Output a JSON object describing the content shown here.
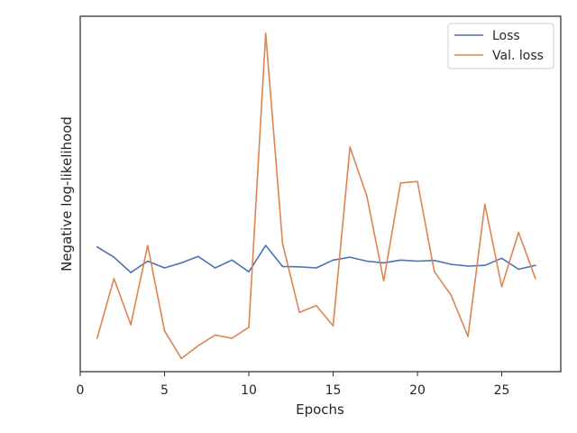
{
  "chart_data": {
    "type": "line",
    "xlabel": "Epochs",
    "ylabel": "Negative log-likelihood",
    "xlim": [
      0,
      28.5
    ],
    "ylim": [
      0,
      1
    ],
    "x_ticks": [
      0,
      5,
      10,
      15,
      20,
      25
    ],
    "y_ticks": [],
    "grid": false,
    "legend_position": "top-right",
    "x": [
      1,
      2,
      3,
      4,
      5,
      6,
      7,
      8,
      9,
      10,
      11,
      12,
      13,
      14,
      15,
      16,
      17,
      18,
      19,
      20,
      21,
      22,
      23,
      24,
      25,
      26,
      27
    ],
    "series": [
      {
        "name": "Loss",
        "color": "#4c72b0",
        "values": [
          0.351,
          0.322,
          0.279,
          0.311,
          0.292,
          0.306,
          0.324,
          0.292,
          0.314,
          0.281,
          0.355,
          0.296,
          0.295,
          0.292,
          0.314,
          0.322,
          0.311,
          0.306,
          0.314,
          0.311,
          0.313,
          0.302,
          0.297,
          0.299,
          0.319,
          0.288,
          0.299
        ]
      },
      {
        "name": "Val. loss",
        "color": "#dd8452",
        "values": [
          0.094,
          0.262,
          0.132,
          0.355,
          0.115,
          0.037,
          0.073,
          0.103,
          0.094,
          0.125,
          0.952,
          0.361,
          0.167,
          0.186,
          0.129,
          0.632,
          0.494,
          0.256,
          0.531,
          0.535,
          0.282,
          0.215,
          0.099,
          0.471,
          0.239,
          0.392,
          0.262
        ]
      }
    ]
  }
}
